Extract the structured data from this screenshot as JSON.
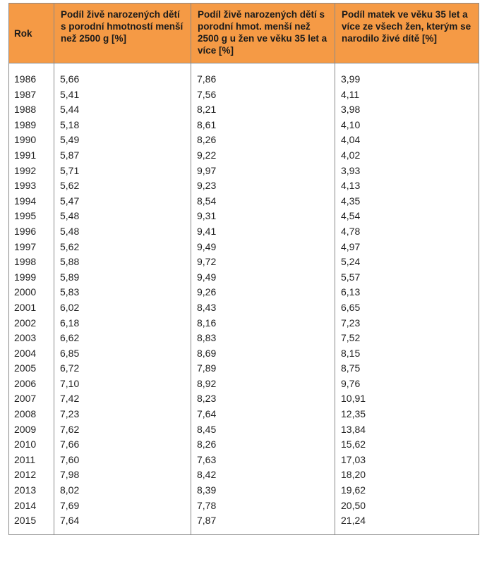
{
  "table": {
    "headers": {
      "year": "Rok",
      "low_weight": "Podíl živě narozených dětí s porodní hmotností menší než 2500 g [%]",
      "low_weight_35plus": "Podíl živě narozených dětí s porodní hmot. menší než 2500 g u žen ve věku 35  let a více [%]",
      "mothers_35plus": "Podíl matek ve věku 35 let a více ze všech žen, kterým se narodilo živé dítě [%]"
    },
    "rows": [
      {
        "year": "1986",
        "a": "5,66",
        "b": "7,86",
        "c": "3,99"
      },
      {
        "year": "1987",
        "a": "5,41",
        "b": "7,56",
        "c": "4,11"
      },
      {
        "year": "1988",
        "a": "5,44",
        "b": "8,21",
        "c": "3,98"
      },
      {
        "year": "1989",
        "a": "5,18",
        "b": "8,61",
        "c": "4,10"
      },
      {
        "year": "1990",
        "a": "5,49",
        "b": "8,26",
        "c": "4,04"
      },
      {
        "year": "1991",
        "a": "5,87",
        "b": "9,22",
        "c": "4,02"
      },
      {
        "year": "1992",
        "a": "5,71",
        "b": "9,97",
        "c": "3,93"
      },
      {
        "year": "1993",
        "a": "5,62",
        "b": "9,23",
        "c": "4,13"
      },
      {
        "year": "1994",
        "a": "5,47",
        "b": "8,54",
        "c": "4,35"
      },
      {
        "year": "1995",
        "a": "5,48",
        "b": "9,31",
        "c": "4,54"
      },
      {
        "year": "1996",
        "a": "5,48",
        "b": "9,41",
        "c": "4,78"
      },
      {
        "year": "1997",
        "a": "5,62",
        "b": "9,49",
        "c": "4,97"
      },
      {
        "year": "1998",
        "a": "5,88",
        "b": "9,72",
        "c": "5,24"
      },
      {
        "year": "1999",
        "a": "5,89",
        "b": "9,49",
        "c": "5,57"
      },
      {
        "year": "2000",
        "a": "5,83",
        "b": "9,26",
        "c": "6,13"
      },
      {
        "year": "2001",
        "a": "6,02",
        "b": "8,43",
        "c": "6,65"
      },
      {
        "year": "2002",
        "a": "6,18",
        "b": "8,16",
        "c": "7,23"
      },
      {
        "year": "2003",
        "a": "6,62",
        "b": "8,83",
        "c": "7,52"
      },
      {
        "year": "2004",
        "a": "6,85",
        "b": "8,69",
        "c": "8,15"
      },
      {
        "year": "2005",
        "a": "6,72",
        "b": "7,89",
        "c": "8,75"
      },
      {
        "year": "2006",
        "a": "7,10",
        "b": "8,92",
        "c": "9,76"
      },
      {
        "year": "2007",
        "a": "7,42",
        "b": "8,23",
        "c": "10,91"
      },
      {
        "year": "2008",
        "a": "7,23",
        "b": "7,64",
        "c": "12,35"
      },
      {
        "year": "2009",
        "a": "7,62",
        "b": "8,45",
        "c": "13,84"
      },
      {
        "year": "2010",
        "a": "7,66",
        "b": "8,26",
        "c": "15,62"
      },
      {
        "year": "2011",
        "a": "7,60",
        "b": "7,63",
        "c": "17,03"
      },
      {
        "year": "2012",
        "a": "7,98",
        "b": "8,42",
        "c": "18,20"
      },
      {
        "year": "2013",
        "a": "8,02",
        "b": "8,39",
        "c": "19,62"
      },
      {
        "year": "2014",
        "a": "7,69",
        "b": "7,78",
        "c": "20,50"
      },
      {
        "year": "2015",
        "a": "7,64",
        "b": "7,87",
        "c": "21,24"
      }
    ]
  },
  "colors": {
    "header_background": "#f59a45",
    "border": "#8a8a8a"
  }
}
